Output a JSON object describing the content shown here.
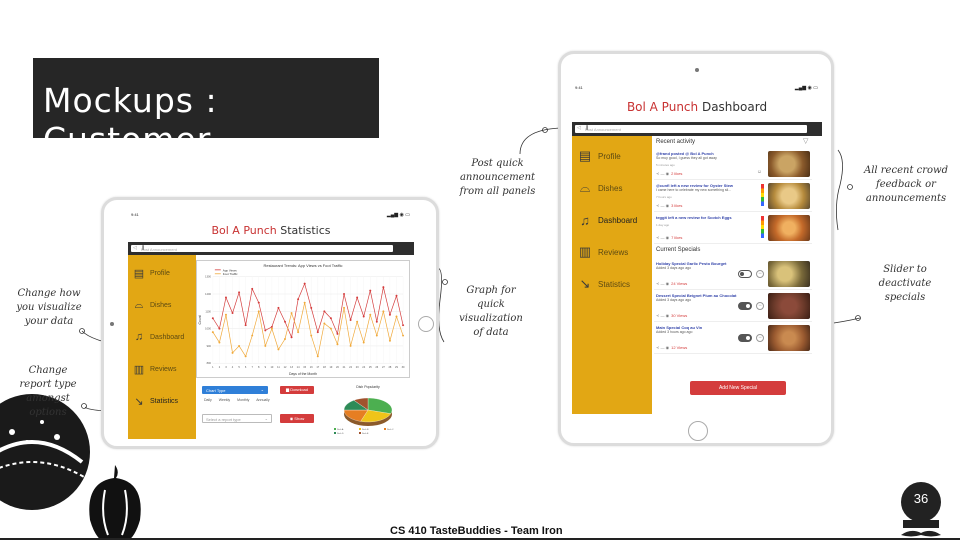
{
  "slide": {
    "title": "Mockups : Customer",
    "footer": "CS 410 TasteBuddies - Team Iron",
    "page_number": "36",
    "colors": {
      "title_bg": "#262626",
      "sidebar": "#e2a714",
      "accent_red": "#d43c3c",
      "footer_bar": "#222222"
    }
  },
  "annotations": {
    "change_viz": "Change how you visualize your data",
    "change_report": "Change report type amongst options",
    "graph": "Graph for quick visualization of data",
    "post": "Post quick announcement from all panels",
    "feedback": "All recent crowd feedback or announcements",
    "slider": "Slider to deactivate specials"
  },
  "stats_app": {
    "time": "9:41",
    "title_brand": "Bol A Punch",
    "title_page": "Statistics",
    "announcement_placeholder": "Post Announcement",
    "sidebar": [
      {
        "label": "Profile",
        "icon": "store-icon"
      },
      {
        "label": "Dishes",
        "icon": "food-tray-icon"
      },
      {
        "label": "Dashboard",
        "icon": "bell-icon"
      },
      {
        "label": "Reviews",
        "icon": "book-icon"
      },
      {
        "label": "Statistics",
        "icon": "chart-icon",
        "active": true
      }
    ],
    "chart_type_label": "Chart Type",
    "download_label": "Download",
    "period_options": [
      "Daily",
      "Weekly",
      "Monthly",
      "Annually"
    ],
    "report_placeholder": "Select a report type",
    "show_label": "Show",
    "pie_title": "Dish Popularity"
  },
  "chart_data": [
    {
      "type": "line",
      "title": "Restaurant Trends: App Views vs Foot Traffic",
      "xlabel": "Days of the Month",
      "ylabel": "Count",
      "x": [
        1,
        2,
        3,
        4,
        5,
        6,
        7,
        8,
        9,
        10,
        11,
        12,
        13,
        14,
        15,
        16,
        17,
        18,
        19,
        20,
        21,
        22,
        23,
        24,
        25,
        26,
        27,
        28,
        29,
        30
      ],
      "ylim": [
        800,
        1300
      ],
      "series": [
        {
          "name": "App Views",
          "color": "#d43c3c",
          "values": [
            1060,
            1000,
            1180,
            1090,
            1210,
            1020,
            1230,
            1150,
            990,
            1010,
            1120,
            1040,
            950,
            1170,
            1260,
            1120,
            980,
            1100,
            1060,
            970,
            1200,
            1050,
            1180,
            1070,
            1220,
            1040,
            1240,
            1080,
            1190,
            1020
          ]
        },
        {
          "name": "Foot Traffic",
          "color": "#f0a93a",
          "values": [
            980,
            920,
            1080,
            860,
            900,
            840,
            960,
            1100,
            900,
            1000,
            880,
            940,
            1090,
            980,
            1150,
            960,
            840,
            1030,
            1000,
            910,
            1120,
            900,
            1040,
            920,
            1080,
            960,
            1100,
            930,
            1070,
            960
          ]
        }
      ],
      "grid": true,
      "legend": "top-left"
    },
    {
      "type": "pie",
      "title": "Dish Popularity",
      "categories": [
        "Dish A",
        "Dish B",
        "Dish C",
        "Dish D",
        "Dish E"
      ],
      "values": [
        30,
        25,
        20,
        15,
        10
      ],
      "colors": [
        "#4caf50",
        "#f0c419",
        "#e67e22",
        "#2e8b57",
        "#a0522d"
      ]
    }
  ],
  "dash_app": {
    "time": "9:41",
    "title_brand": "Bol A Punch",
    "title_page": "Dashboard",
    "announcement_placeholder": "Post Announcement",
    "sidebar": [
      {
        "label": "Profile",
        "icon": "store-icon"
      },
      {
        "label": "Dishes",
        "icon": "food-tray-icon"
      },
      {
        "label": "Dashboard",
        "icon": "bell-icon",
        "active": true
      },
      {
        "label": "Reviews",
        "icon": "book-icon"
      },
      {
        "label": "Statistics",
        "icon": "chart-icon"
      }
    ],
    "recent_heading": "Recent activity",
    "recent": [
      {
        "title": "@frand posted @ Bol A Punch",
        "sub": "So muy good, I guess they all got away",
        "time": "5 minutes ago",
        "likes": "2 likes",
        "food": "#8a5a2b"
      },
      {
        "title": "@cunfl left a new review for Oyster Stew",
        "sub": "I came here to celebrate my new something sil...",
        "time": "7 hours ago",
        "likes": "3 likes",
        "food": "#b58a3c"
      },
      {
        "title": "teggit left a new review for Scotch Eggs",
        "sub": "",
        "time": "1 day ago",
        "likes": "7 likes",
        "food": "#c46a2a"
      }
    ],
    "specials_heading": "Current Specials",
    "specials": [
      {
        "title": "Holiday Special Garlic Pesto Bourget",
        "sub": "Added 3 days ago ago",
        "likes": "24 Views",
        "on": false,
        "food": "#7a6a3a"
      },
      {
        "title": "Dessert Special Beignet Plum au Chocolat",
        "sub": "Added 3 days ago ago",
        "likes": "30 Views",
        "on": true,
        "food": "#6b3a2a"
      },
      {
        "title": "Main Special Coq au Vin",
        "sub": "Added 3 hours ago ago",
        "likes": "12 Views",
        "on": true,
        "food": "#9a5a30"
      }
    ],
    "add_special_label": "Add New Special"
  }
}
